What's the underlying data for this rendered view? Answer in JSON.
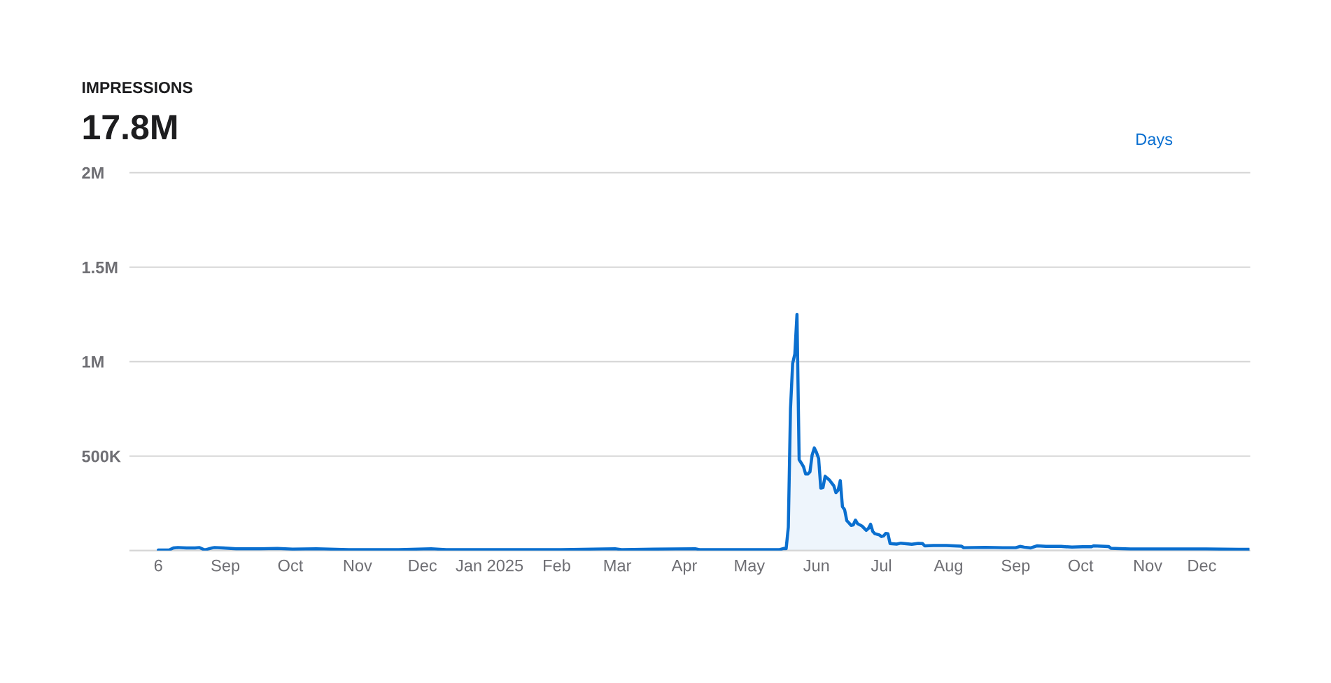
{
  "chart_data": {
    "type": "area",
    "title": "IMPRESSIONS",
    "subtitle": "17.8M",
    "annotations": [
      "Days"
    ],
    "x": [
      "2024-08-06",
      "2024-08-11",
      "2024-08-13",
      "2024-08-15",
      "2024-08-19",
      "2024-08-23",
      "2024-08-25",
      "2024-08-27",
      "2024-08-28",
      "2024-08-31",
      "2024-09-01",
      "2024-09-05",
      "2024-09-11",
      "2024-09-22",
      "2024-09-30",
      "2024-10-07",
      "2024-10-18",
      "2024-11-02",
      "2024-11-25",
      "2024-12-10",
      "2024-12-17",
      "2025-01-11",
      "2025-02-08",
      "2025-03-05",
      "2025-03-08",
      "2025-03-23",
      "2025-04-11",
      "2025-04-13",
      "2025-05-03",
      "2025-05-20",
      "2025-05-22",
      "2025-05-23",
      "2025-05-24",
      "2025-05-25",
      "2025-05-26",
      "2025-05-27",
      "2025-05-28",
      "2025-05-29",
      "2025-05-30",
      "2025-05-31",
      "2025-06-01",
      "2025-06-02",
      "2025-06-03",
      "2025-06-04",
      "2025-06-05",
      "2025-06-06",
      "2025-06-07",
      "2025-06-08",
      "2025-06-09",
      "2025-06-10",
      "2025-06-12",
      "2025-06-13",
      "2025-06-14",
      "2025-06-15",
      "2025-06-16",
      "2025-06-17",
      "2025-06-18",
      "2025-06-19",
      "2025-06-20",
      "2025-06-21",
      "2025-06-22",
      "2025-06-23",
      "2025-06-24",
      "2025-06-25",
      "2025-06-27",
      "2025-06-29",
      "2025-06-30",
      "2025-07-01",
      "2025-07-02",
      "2025-07-03",
      "2025-07-05",
      "2025-07-06",
      "2025-07-07",
      "2025-07-08",
      "2025-07-09",
      "2025-07-10",
      "2025-07-13",
      "2025-07-15",
      "2025-07-20",
      "2025-07-23",
      "2025-07-25",
      "2025-07-26",
      "2025-07-30",
      "2025-08-05",
      "2025-08-12",
      "2025-08-13",
      "2025-08-23",
      "2025-08-31",
      "2025-09-06",
      "2025-09-08",
      "2025-09-10",
      "2025-09-13",
      "2025-09-16",
      "2025-09-20",
      "2025-09-27",
      "2025-10-02",
      "2025-10-07",
      "2025-10-11",
      "2025-10-12",
      "2025-10-19",
      "2025-10-20",
      "2025-10-24",
      "2025-10-29",
      "2025-11-16",
      "2025-12-03",
      "2025-12-18",
      "2025-12-23"
    ],
    "series": [
      {
        "color": "#0a6fcf",
        "values": [
          3000,
          3000,
          14000,
          16000,
          14000,
          14000,
          16000,
          5000,
          5000,
          14000,
          16000,
          14000,
          9000,
          9000,
          11000,
          7000,
          9000,
          5000,
          5000,
          9000,
          5000,
          5000,
          5000,
          9000,
          5000,
          7000,
          9000,
          5000,
          5000,
          5000,
          11000,
          10000,
          124000,
          750000,
          990000,
          1040000,
          1250000,
          481000,
          463000,
          444000,
          405000,
          405000,
          417000,
          506000,
          543000,
          519000,
          487000,
          330000,
          333000,
          393000,
          373000,
          358000,
          343000,
          306000,
          319000,
          370000,
          232000,
          216000,
          158000,
          146000,
          133000,
          136000,
          161000,
          142000,
          130000,
          107000,
          117000,
          139000,
          101000,
          89000,
          83000,
          74000,
          77000,
          91000,
          89000,
          37000,
          34000,
          39000,
          33000,
          38000,
          37000,
          25000,
          27000,
          27000,
          23000,
          15000,
          17000,
          15000,
          15000,
          22000,
          18000,
          14000,
          25000,
          22000,
          22000,
          18000,
          20000,
          20000,
          25000,
          21000,
          12000,
          10000,
          8000,
          8000,
          8000,
          6000,
          6000
        ]
      }
    ],
    "xlim": [
      "2024-07-24",
      "2025-12-23"
    ],
    "xticks": [
      {
        "value": "2024-08-06",
        "label": "6"
      },
      {
        "value": "2024-09-06",
        "label": "Sep"
      },
      {
        "value": "2024-10-06",
        "label": "Oct"
      },
      {
        "value": "2024-11-06",
        "label": "Nov"
      },
      {
        "value": "2024-12-06",
        "label": "Dec"
      },
      {
        "value": "2025-01-06",
        "label": "Jan 2025"
      },
      {
        "value": "2025-02-06",
        "label": "Feb"
      },
      {
        "value": "2025-03-06",
        "label": "Mar"
      },
      {
        "value": "2025-04-06",
        "label": "Apr"
      },
      {
        "value": "2025-05-06",
        "label": "May"
      },
      {
        "value": "2025-06-06",
        "label": "Jun"
      },
      {
        "value": "2025-07-06",
        "label": "Jul"
      },
      {
        "value": "2025-08-06",
        "label": "Aug"
      },
      {
        "value": "2025-09-06",
        "label": "Sep"
      },
      {
        "value": "2025-10-06",
        "label": "Oct"
      },
      {
        "value": "2025-11-06",
        "label": "Nov"
      },
      {
        "value": "2025-12-01",
        "label": "Dec"
      }
    ],
    "ylim": [
      0,
      2000000
    ],
    "yticks": [
      {
        "value": 0,
        "label": null
      },
      {
        "value": 500000,
        "label": "500K"
      },
      {
        "value": 1000000,
        "label": "1M"
      },
      {
        "value": 1500000,
        "label": "1.5M"
      },
      {
        "value": 2000000,
        "label": "2M"
      }
    ],
    "grid": "y"
  }
}
